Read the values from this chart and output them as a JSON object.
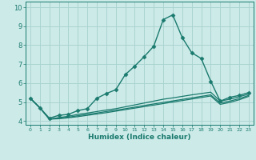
{
  "title": "",
  "xlabel": "Humidex (Indice chaleur)",
  "bg_color": "#cceae8",
  "grid_color": "#aad4d0",
  "line_color": "#1a7a6e",
  "xlim": [
    -0.5,
    23.5
  ],
  "ylim": [
    3.8,
    10.3
  ],
  "yticks": [
    4,
    5,
    6,
    7,
    8,
    9,
    10
  ],
  "xticks": [
    0,
    1,
    2,
    3,
    4,
    5,
    6,
    7,
    8,
    9,
    10,
    11,
    12,
    13,
    14,
    15,
    16,
    17,
    18,
    19,
    20,
    21,
    22,
    23
  ],
  "series": [
    {
      "x": [
        0,
        1,
        2,
        3,
        4,
        5,
        6,
        7,
        8,
        9,
        10,
        11,
        12,
        13,
        14,
        15,
        16,
        17,
        18,
        19,
        20,
        21,
        22,
        23
      ],
      "y": [
        5.2,
        4.7,
        4.15,
        4.3,
        4.35,
        4.55,
        4.65,
        5.2,
        5.45,
        5.65,
        6.45,
        6.9,
        7.4,
        7.95,
        9.35,
        9.6,
        8.4,
        7.6,
        7.3,
        6.1,
        5.05,
        5.25,
        5.35,
        5.5
      ],
      "marker": "D",
      "markersize": 2.5,
      "linewidth": 1.0,
      "has_marker": true
    },
    {
      "x": [
        0,
        1,
        2,
        3,
        4,
        5,
        6,
        7,
        8,
        9,
        10,
        11,
        12,
        13,
        14,
        15,
        16,
        17,
        18,
        19,
        20,
        21,
        22,
        23
      ],
      "y": [
        5.2,
        4.7,
        4.1,
        4.18,
        4.25,
        4.35,
        4.42,
        4.5,
        4.58,
        4.65,
        4.75,
        4.85,
        4.95,
        5.05,
        5.15,
        5.22,
        5.3,
        5.38,
        5.45,
        5.52,
        5.05,
        5.15,
        5.28,
        5.42
      ],
      "marker": null,
      "markersize": 0,
      "linewidth": 0.9,
      "has_marker": false
    },
    {
      "x": [
        0,
        1,
        2,
        3,
        4,
        5,
        6,
        7,
        8,
        9,
        10,
        11,
        12,
        13,
        14,
        15,
        16,
        17,
        18,
        19,
        20,
        21,
        22,
        23
      ],
      "y": [
        5.2,
        4.7,
        4.1,
        4.15,
        4.2,
        4.28,
        4.35,
        4.42,
        4.5,
        4.57,
        4.65,
        4.73,
        4.82,
        4.9,
        4.98,
        5.06,
        5.14,
        5.22,
        5.3,
        5.38,
        4.95,
        5.05,
        5.18,
        5.35
      ],
      "marker": null,
      "markersize": 0,
      "linewidth": 0.9,
      "has_marker": false
    },
    {
      "x": [
        0,
        1,
        2,
        3,
        4,
        5,
        6,
        7,
        8,
        9,
        10,
        11,
        12,
        13,
        14,
        15,
        16,
        17,
        18,
        19,
        20,
        21,
        22,
        23
      ],
      "y": [
        5.2,
        4.7,
        4.1,
        4.12,
        4.17,
        4.23,
        4.3,
        4.37,
        4.44,
        4.52,
        4.6,
        4.68,
        4.76,
        4.84,
        4.92,
        5.0,
        5.08,
        5.16,
        5.24,
        5.32,
        4.88,
        4.98,
        5.12,
        5.3
      ],
      "marker": null,
      "markersize": 0,
      "linewidth": 0.9,
      "has_marker": false
    }
  ]
}
